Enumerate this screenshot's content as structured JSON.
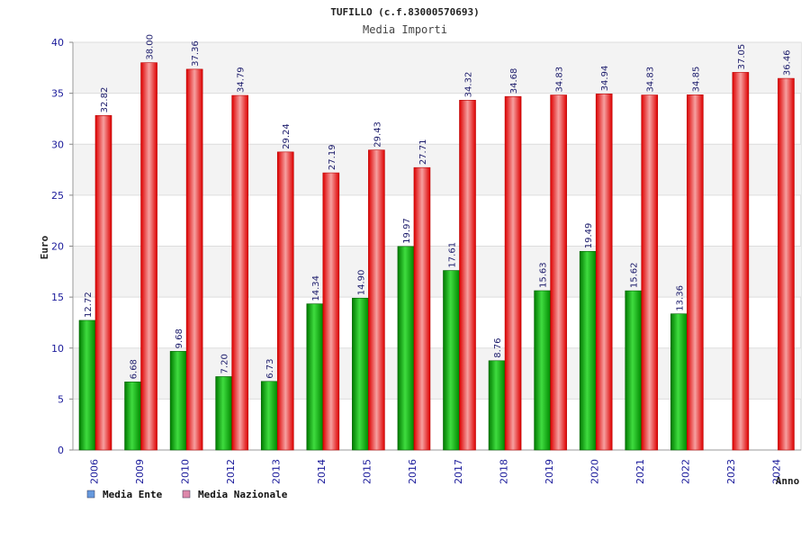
{
  "chart_data": {
    "type": "bar",
    "title": "TUFILLO (c.f.83000570693)",
    "subtitle": "Media Importi",
    "xlabel": "Anno",
    "ylabel": "Euro",
    "ylim": [
      0,
      40
    ],
    "yticks": [
      0,
      5,
      10,
      15,
      20,
      25,
      30,
      35,
      40
    ],
    "grid": true,
    "legend_position": "bottom-left",
    "categories": [
      "2006",
      "2009",
      "2010",
      "2012",
      "2013",
      "2014",
      "2015",
      "2016",
      "2017",
      "2018",
      "2019",
      "2020",
      "2021",
      "2022",
      "2023",
      "2024"
    ],
    "series": [
      {
        "name": "Media Ente",
        "color": "#00b000",
        "legend_color": "#6699dd",
        "values": [
          12.72,
          6.68,
          9.68,
          7.2,
          6.73,
          14.34,
          14.9,
          19.97,
          17.61,
          8.76,
          15.63,
          19.49,
          15.62,
          13.36,
          null,
          null
        ],
        "labels": [
          "12.72",
          "6.68",
          "9.68",
          "7.20",
          "6.73",
          "14.34",
          "14.90",
          "19.97",
          "17.61",
          "8.76",
          "15.63",
          "19.49",
          "15.62",
          "13.36",
          "",
          ""
        ]
      },
      {
        "name": "Media Nazionale",
        "color": "#ee1111",
        "legend_color": "#dd88aa",
        "values": [
          32.82,
          38.0,
          37.36,
          34.79,
          29.24,
          27.19,
          29.43,
          27.71,
          34.32,
          34.68,
          34.83,
          34.94,
          34.83,
          34.85,
          37.05,
          36.46
        ],
        "labels": [
          "32.82",
          "38.00",
          "37.36",
          "34.79",
          "29.24",
          "27.19",
          "29.43",
          "27.71",
          "34.32",
          "34.68",
          "34.83",
          "34.94",
          "34.83",
          "34.85",
          "37.05",
          "36.46"
        ]
      }
    ]
  }
}
